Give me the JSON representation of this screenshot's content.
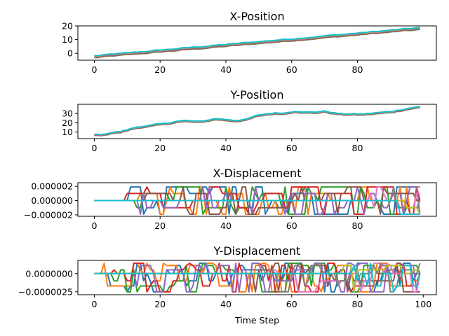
{
  "chart_data": [
    {
      "type": "line",
      "title": "X-Position",
      "xlabel": "",
      "ylabel": "",
      "xlim": [
        -5,
        104
      ],
      "ylim": [
        -5,
        20
      ],
      "xticks": [
        0,
        20,
        40,
        60,
        80
      ],
      "yticks": [
        0,
        10,
        20
      ],
      "xtick_labels": [
        "0",
        "20",
        "40",
        "60",
        "80"
      ],
      "ytick_labels": [
        "0",
        "10",
        "20"
      ],
      "series_colors": [
        "#1f77b4",
        "#ff7f0e",
        "#2ca02c",
        "#d62728",
        "#9467bd",
        "#8c564b",
        "#e377c2",
        "#7f7f7f",
        "#bcbd22",
        "#17becf"
      ],
      "trend": {
        "start": -2.5,
        "end": 18,
        "wobble": 0.6
      },
      "spread": 1.4,
      "n_points": 100
    },
    {
      "type": "line",
      "title": "Y-Position",
      "xlabel": "",
      "ylabel": "",
      "xlim": [
        -5,
        104
      ],
      "ylim": [
        3,
        40
      ],
      "xticks": [
        0,
        20,
        40,
        60,
        80
      ],
      "yticks": [
        10,
        20,
        30
      ],
      "xtick_labels": [
        "0",
        "20",
        "40",
        "60",
        "80"
      ],
      "ytick_labels": [
        "10",
        "20",
        "30"
      ],
      "series_colors": [
        "#1f77b4",
        "#ff7f0e",
        "#2ca02c",
        "#d62728",
        "#9467bd",
        "#8c564b",
        "#e377c2",
        "#7f7f7f",
        "#bcbd22",
        "#17becf"
      ],
      "keypoints": [
        [
          0,
          7
        ],
        [
          3,
          7
        ],
        [
          5,
          9
        ],
        [
          8,
          10
        ],
        [
          10,
          12
        ],
        [
          13,
          15
        ],
        [
          16,
          16
        ],
        [
          19,
          18
        ],
        [
          22,
          19
        ],
        [
          25,
          21
        ],
        [
          28,
          22
        ],
        [
          31,
          21
        ],
        [
          34,
          22
        ],
        [
          37,
          24
        ],
        [
          40,
          23
        ],
        [
          43,
          22
        ],
        [
          46,
          23
        ],
        [
          49,
          27
        ],
        [
          52,
          29
        ],
        [
          55,
          30
        ],
        [
          58,
          30
        ],
        [
          61,
          32
        ],
        [
          64,
          31
        ],
        [
          67,
          31
        ],
        [
          70,
          32
        ],
        [
          73,
          30
        ],
        [
          76,
          29
        ],
        [
          79,
          29
        ],
        [
          82,
          29
        ],
        [
          85,
          30
        ],
        [
          88,
          31
        ],
        [
          91,
          32
        ],
        [
          94,
          34
        ],
        [
          97,
          36
        ],
        [
          99,
          37
        ]
      ],
      "spread": 1.2,
      "n_points": 100
    },
    {
      "type": "line",
      "title": "X-Displacement",
      "xlabel": "",
      "ylabel": "",
      "xlim": [
        -5,
        104
      ],
      "ylim": [
        -2.2e-06,
        2.5e-06
      ],
      "xticks": [
        0,
        20,
        40,
        60,
        80
      ],
      "yticks": [
        -2e-06,
        0,
        2e-06
      ],
      "xtick_labels": [
        "0",
        "20",
        "40",
        "60",
        "80"
      ],
      "ytick_labels": [
        "−0.000002",
        "0.000000",
        "0.000002"
      ],
      "levels": [
        -1.9e-06,
        -1e-06,
        0,
        1e-06,
        1.9e-06
      ],
      "active_from": [
        8,
        12,
        13,
        10,
        14,
        16,
        83,
        88,
        90,
        92
      ],
      "series_colors": [
        "#1f77b4",
        "#ff7f0e",
        "#2ca02c",
        "#d62728",
        "#9467bd",
        "#8c564b",
        "#e377c2",
        "#7f7f7f",
        "#bcbd22",
        "#17becf"
      ],
      "n_points": 100
    },
    {
      "type": "line",
      "title": "Y-Displacement",
      "xlabel": "Time Step",
      "ylabel": "",
      "xlim": [
        -5,
        104
      ],
      "ylim": [
        -2.9e-06,
        1.8e-06
      ],
      "xticks": [
        0,
        20,
        40,
        60,
        80,
        100
      ],
      "yticks": [
        -2.5e-06,
        0
      ],
      "xtick_labels": [
        "0",
        "20",
        "40",
        "60",
        "80",
        "100"
      ],
      "ytick_labels": [
        "−0.0000025",
        "0.0000000"
      ],
      "levels": [
        -2.5e-06,
        -1.7e-06,
        -1e-06,
        0,
        5e-07,
        1.1e-06,
        1.4e-06
      ],
      "active_from": [
        2,
        3,
        5,
        6,
        8,
        48,
        49,
        50,
        75,
        78
      ],
      "series_colors": [
        "#1f77b4",
        "#ff7f0e",
        "#2ca02c",
        "#d62728",
        "#9467bd",
        "#8c564b",
        "#e377c2",
        "#7f7f7f",
        "#bcbd22",
        "#17becf"
      ],
      "n_points": 100
    }
  ]
}
